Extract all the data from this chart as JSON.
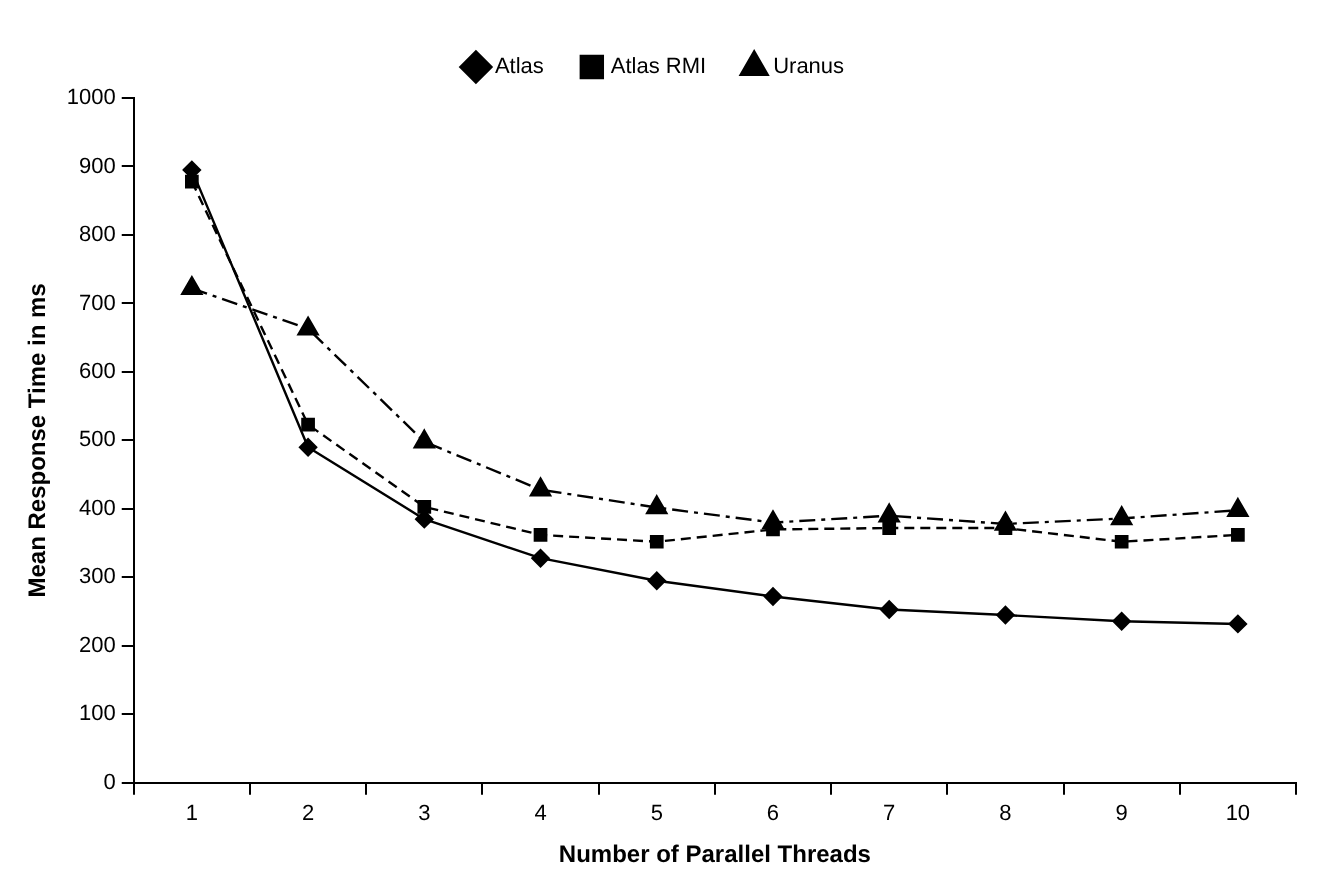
{
  "chart_data": {
    "type": "line",
    "xlabel": "Number of Parallel Threads",
    "ylabel": "Mean Response Time in ms",
    "categories": [
      "1",
      "2",
      "3",
      "4",
      "5",
      "6",
      "7",
      "8",
      "9",
      "10"
    ],
    "series": [
      {
        "name": "Atlas",
        "color": "#000000",
        "marker": "diamond",
        "line_style": "solid",
        "values": [
          895,
          490,
          385,
          328,
          295,
          272,
          253,
          245,
          236,
          232
        ]
      },
      {
        "name": "Atlas RMI",
        "color": "#000000",
        "marker": "square",
        "line_style": "dashed",
        "values": [
          878,
          523,
          403,
          362,
          352,
          370,
          372,
          372,
          352,
          362
        ]
      },
      {
        "name": "Uranus",
        "color": "#000000",
        "marker": "triangle",
        "line_style": "dotted",
        "values": [
          722,
          663,
          498,
          428,
          402,
          380,
          390,
          378,
          386,
          398
        ]
      }
    ],
    "ylim": [
      0,
      1000
    ],
    "yticks": [
      0,
      100,
      200,
      300,
      400,
      500,
      600,
      700,
      800,
      900,
      1000
    ],
    "grid": false,
    "legend": "top"
  }
}
